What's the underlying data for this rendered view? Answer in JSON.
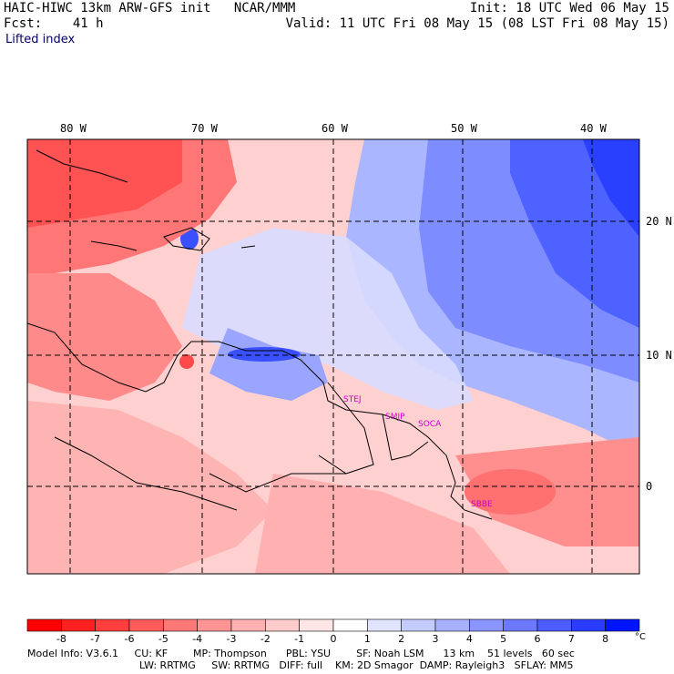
{
  "header": {
    "model_title": "HAIC-HIWC 13km ARW-GFS init",
    "org": "NCAR/MMM",
    "forecast": "Fcst:    41 h",
    "init": "Init: 18 UTC Wed 06 May 15",
    "valid": "Valid: 11 UTC Fri 08 May 15 (08 LST Fri 08 May 15)"
  },
  "field_name": "Lifted index",
  "map": {
    "lon_labels": [
      "80 W",
      "70 W",
      "60 W",
      "50 W",
      "40 W"
    ],
    "lat_labels": [
      "20 N",
      "10 N",
      "0"
    ],
    "stations": [
      "STEJ",
      "SMJP",
      "SOCA",
      "SBBE"
    ],
    "station_color": "#cc00cc"
  },
  "colorbar": {
    "ticks": [
      "-8",
      "-7",
      "-6",
      "-5",
      "-4",
      "-3",
      "-2",
      "-1",
      "0",
      "1",
      "2",
      "3",
      "4",
      "5",
      "6",
      "7",
      "8"
    ],
    "unit": "°C",
    "colors": [
      "#ff0000",
      "#ff2121",
      "#ff3e3e",
      "#ff5b5b",
      "#ff7878",
      "#ff9494",
      "#ffb0b0",
      "#ffcccc",
      "#ffe6e6",
      "#ffffff",
      "#e0e4ff",
      "#c4cbff",
      "#a7b0ff",
      "#8a95ff",
      "#6c79ff",
      "#4c5cff",
      "#2a3cff",
      "#0015ff"
    ]
  },
  "footer": {
    "line1": "Model Info: V3.6.1     CU: KF        MP: Thompson      PBL: YSU        SF: Noah LSM      13 km    51 levels   60 sec",
    "line2": "LW: RRTMG     SW: RRTMG   DIFF: full    KM: 2D Smagor  DAMP: Rayleigh3   SFLAY: MM5"
  }
}
